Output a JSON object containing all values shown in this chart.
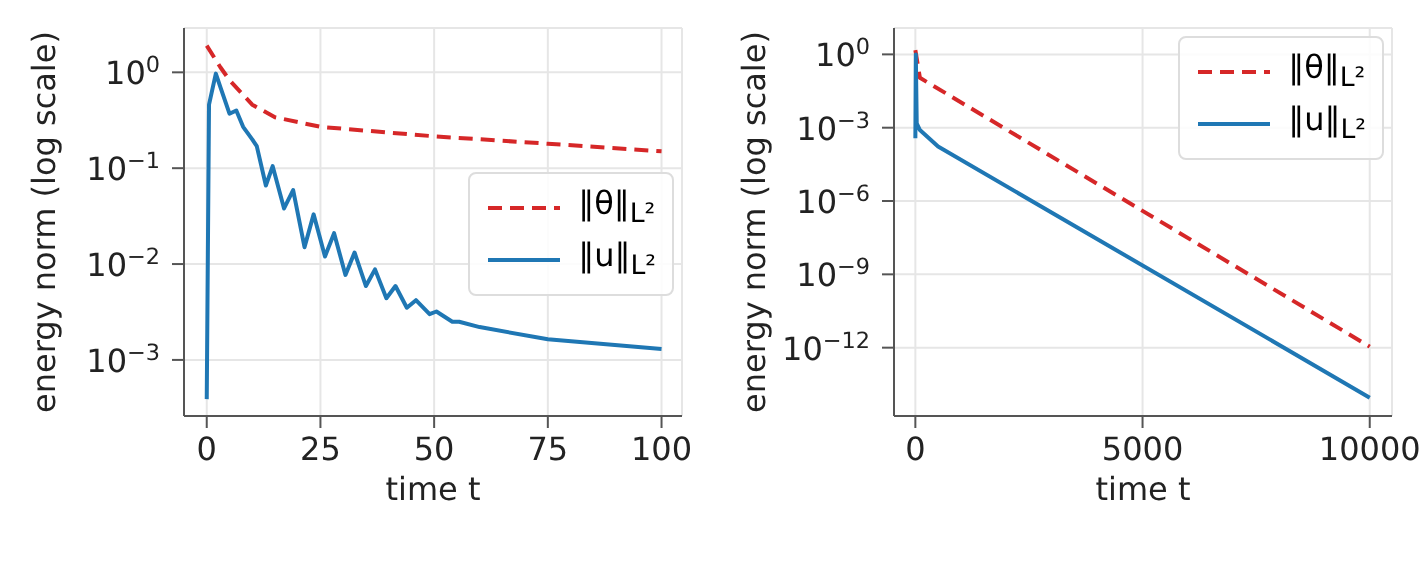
{
  "chart_data": [
    {
      "type": "line",
      "xlabel": "time t",
      "ylabel": "energy norm (log scale)",
      "log": "y",
      "grid": true,
      "legend": "right",
      "xlim": [
        -5,
        104.5
      ],
      "xticks": [
        0,
        25,
        50,
        75,
        100
      ],
      "ylim": [
        0.00026,
        2.9
      ],
      "yticks": [
        {
          "value": 0.001,
          "label": "10$^{−3}$"
        },
        {
          "value": 0.01,
          "label": "10$^{−2}$"
        },
        {
          "value": 0.1,
          "label": "10$^{−1}$"
        },
        {
          "value": 1,
          "label": "10$^{0}$"
        }
      ],
      "series": [
        {
          "name": "‖θ‖$_{L²}$",
          "color": "#d62728",
          "line_style": "dashed",
          "x": [
            0,
            3,
            5,
            10,
            15,
            25,
            50,
            75,
            100
          ],
          "values": [
            1.9,
            1.13,
            0.83,
            0.46,
            0.34,
            0.27,
            0.215,
            0.18,
            0.15
          ]
        },
        {
          "name": "‖u‖$_{L²}$",
          "color": "#1f77b4",
          "line_style": "solid",
          "x": [
            0,
            0.5,
            2,
            3,
            5,
            6.5,
            8,
            10,
            11,
            13,
            14.5,
            17,
            19,
            21.5,
            23.5,
            26,
            28,
            30.5,
            32.5,
            35,
            37,
            39.5,
            41.5,
            44,
            46,
            49,
            50.5,
            54,
            55.5,
            60,
            75,
            100
          ],
          "values": [
            0.00039,
            0.46,
            0.97,
            0.7,
            0.37,
            0.4,
            0.27,
            0.2,
            0.17,
            0.066,
            0.105,
            0.038,
            0.059,
            0.015,
            0.033,
            0.012,
            0.021,
            0.0077,
            0.0132,
            0.0059,
            0.0088,
            0.0044,
            0.0059,
            0.0035,
            0.0042,
            0.003,
            0.0032,
            0.0025,
            0.0025,
            0.0022,
            0.00164,
            0.0013
          ]
        }
      ]
    },
    {
      "type": "line",
      "xlabel": "time t",
      "ylabel": "energy norm (log scale)",
      "log": "y",
      "grid": true,
      "legend": "top right",
      "xlim": [
        -470,
        10490
      ],
      "xticks": [
        0,
        5000,
        10000
      ],
      "ylim": [
        1.6e-15,
        12
      ],
      "yticks": [
        {
          "value": 1e-12,
          "label": "10$^{−12}$"
        },
        {
          "value": 1e-09,
          "label": "10$^{−9}$"
        },
        {
          "value": 1e-06,
          "label": "10$^{−6}$"
        },
        {
          "value": 0.001,
          "label": "10$^{−3}$"
        },
        {
          "value": 1,
          "label": "10$^{0}$"
        }
      ],
      "series": [
        {
          "name": "‖θ‖$_{L²}$",
          "color": "#d62728",
          "line_style": "dashed",
          "x": [
            0,
            100,
            10000
          ],
          "values": [
            1.5,
            0.11,
            1.1e-12
          ]
        },
        {
          "name": "‖u‖$_{L²}$",
          "color": "#1f77b4",
          "line_style": "solid",
          "x": [
            0,
            10,
            30,
            100,
            500,
            10000
          ],
          "values": [
            0.00037,
            1,
            0.0015,
            0.0008,
            0.00017,
            9e-15
          ]
        }
      ]
    }
  ]
}
